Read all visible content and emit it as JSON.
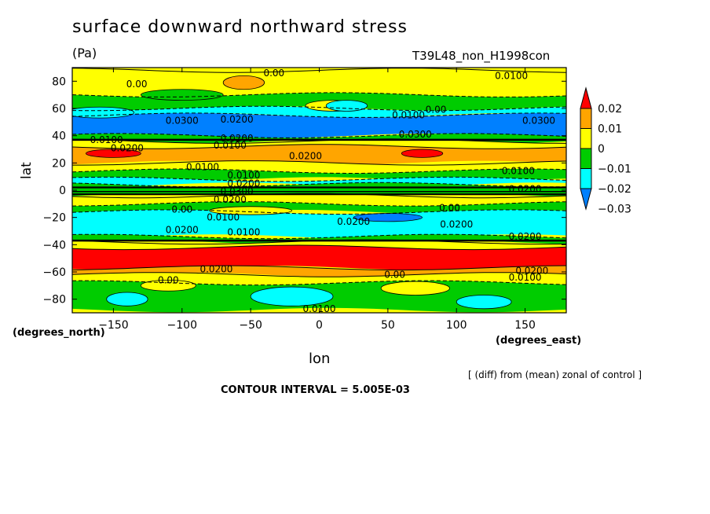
{
  "header": {
    "title": "surface downward northward stress",
    "units": "(Pa)",
    "run": "T39L48_non_H1998con"
  },
  "axes": {
    "ylabel": "lat",
    "xlabel": "lon",
    "y_unit_label": "(degrees_north)",
    "x_unit_label": "(degrees_east)"
  },
  "footer": {
    "diff_note": "[ (diff) from (mean) zonal of control ]",
    "contour_interval": "CONTOUR INTERVAL = 5.005E-03"
  },
  "colors": {
    "red": "#ff0000",
    "orange": "#ffa500",
    "yellow": "#ffff00",
    "green": "#00cc00",
    "cyan": "#00ffff",
    "blue": "#0080ff"
  },
  "chart_data": {
    "type": "heatmap",
    "title": "surface downward northward stress",
    "xlabel": "lon",
    "ylabel": "lat",
    "xlim": [
      -180,
      180
    ],
    "ylim": [
      -90,
      90
    ],
    "xticks": [
      -150,
      -100,
      -50,
      0,
      50,
      100,
      150
    ],
    "yticks": [
      -80,
      -60,
      -40,
      -20,
      0,
      20,
      40,
      60,
      80
    ],
    "colorbar": {
      "levels": [
        "0.02",
        "0.01",
        "0",
        "-0.01",
        "-0.02",
        "-0.03"
      ],
      "colors": [
        "#ff0000",
        "#ffa500",
        "#ffff00",
        "#00cc00",
        "#00ffff",
        "#0080ff"
      ]
    },
    "bands": [
      {
        "lat_from": 70,
        "lat_to": 88,
        "value": 0.005
      },
      {
        "lat_from": 60,
        "lat_to": 70,
        "value": -0.005
      },
      {
        "lat_from": 55,
        "lat_to": 60,
        "value": -0.015
      },
      {
        "lat_from": 40,
        "lat_to": 55,
        "value": -0.025
      },
      {
        "lat_from": 36,
        "lat_to": 40,
        "value": -0.005
      },
      {
        "lat_from": 32,
        "lat_to": 36,
        "value": 0.005
      },
      {
        "lat_from": 20,
        "lat_to": 32,
        "value": 0.015
      },
      {
        "lat_from": 14,
        "lat_to": 20,
        "value": 0.005
      },
      {
        "lat_from": 8,
        "lat_to": 14,
        "value": -0.005
      },
      {
        "lat_from": 4,
        "lat_to": 8,
        "value": -0.015
      },
      {
        "lat_from": -4,
        "lat_to": 4,
        "value": -0.005
      },
      {
        "lat_from": -10,
        "lat_to": -4,
        "value": 0.005
      },
      {
        "lat_from": -16,
        "lat_to": -10,
        "value": -0.005
      },
      {
        "lat_from": -34,
        "lat_to": -16,
        "value": -0.015
      },
      {
        "lat_from": -38,
        "lat_to": -34,
        "value": -0.005
      },
      {
        "lat_from": -42,
        "lat_to": -38,
        "value": 0.005
      },
      {
        "lat_from": -57,
        "lat_to": -42,
        "value": 0.025
      },
      {
        "lat_from": -62,
        "lat_to": -57,
        "value": 0.015
      },
      {
        "lat_from": -68,
        "lat_to": -62,
        "value": 0.005
      },
      {
        "lat_from": -88,
        "lat_to": -68,
        "value": -0.005
      }
    ],
    "patches": [
      {
        "lon": -100,
        "lat": 70,
        "w": 60,
        "h": 8,
        "value": -0.005
      },
      {
        "lon": 10,
        "lat": 62,
        "w": 40,
        "h": 8,
        "value": 0.005
      },
      {
        "lon": -55,
        "lat": 79,
        "w": 30,
        "h": 10,
        "value": 0.015
      },
      {
        "lon": -160,
        "lat": 57,
        "w": 50,
        "h": 8,
        "value": -0.015
      },
      {
        "lon": 20,
        "lat": 62,
        "w": 30,
        "h": 8,
        "value": -0.015
      },
      {
        "lon": -150,
        "lat": 27,
        "w": 40,
        "h": 6,
        "value": 0.025
      },
      {
        "lon": 75,
        "lat": 27,
        "w": 30,
        "h": 6,
        "value": 0.025
      },
      {
        "lon": -50,
        "lat": -15,
        "w": 60,
        "h": 6,
        "value": 0.005
      },
      {
        "lon": 50,
        "lat": -20,
        "w": 50,
        "h": 6,
        "value": -0.025
      },
      {
        "lon": -140,
        "lat": -80,
        "w": 30,
        "h": 10,
        "value": -0.015
      },
      {
        "lon": -20,
        "lat": -78,
        "w": 60,
        "h": 14,
        "value": -0.015
      },
      {
        "lon": 120,
        "lat": -82,
        "w": 40,
        "h": 10,
        "value": -0.015
      },
      {
        "lon": 70,
        "lat": -72,
        "w": 50,
        "h": 10,
        "value": 0.005
      },
      {
        "lon": -110,
        "lat": -70,
        "w": 40,
        "h": 8,
        "value": 0.005
      }
    ],
    "contour_labels": [
      {
        "text": "0.00",
        "lon": -133,
        "lat": 78
      },
      {
        "text": "0.00",
        "lon": -33,
        "lat": 86
      },
      {
        "text": "0.0100",
        "lon": 140,
        "lat": 84
      },
      {
        "text": "0.0100",
        "lon": 65,
        "lat": 55
      },
      {
        "text": "0.00",
        "lon": 85,
        "lat": 59
      },
      {
        "text": "0.0300",
        "lon": -100,
        "lat": 51
      },
      {
        "text": "0.0200",
        "lon": -60,
        "lat": 52
      },
      {
        "text": "0.0300",
        "lon": 160,
        "lat": 51
      },
      {
        "text": "0.0300",
        "lon": 70,
        "lat": 41
      },
      {
        "text": "0.0100",
        "lon": -155,
        "lat": 37
      },
      {
        "text": "0.0200",
        "lon": -140,
        "lat": 31
      },
      {
        "text": "0.0200",
        "lon": -60,
        "lat": 38
      },
      {
        "text": "0.0100",
        "lon": -65,
        "lat": 33
      },
      {
        "text": "0.0200",
        "lon": -10,
        "lat": 25
      },
      {
        "text": "0.0100",
        "lon": -85,
        "lat": 17
      },
      {
        "text": "0.0100",
        "lon": 145,
        "lat": 14
      },
      {
        "text": "0.0100",
        "lon": -55,
        "lat": 11
      },
      {
        "text": "0.0200",
        "lon": -55,
        "lat": 5
      },
      {
        "text": "0.0300",
        "lon": -60,
        "lat": -1
      },
      {
        "text": "0.0200",
        "lon": -65,
        "lat": -7
      },
      {
        "text": "0.0200",
        "lon": 150,
        "lat": 1
      },
      {
        "text": "0.00",
        "lon": -100,
        "lat": -14
      },
      {
        "text": "0.00",
        "lon": 95,
        "lat": -13
      },
      {
        "text": "0.0100",
        "lon": -70,
        "lat": -20
      },
      {
        "text": "0.0200",
        "lon": 25,
        "lat": -23
      },
      {
        "text": "0.0200",
        "lon": 100,
        "lat": -25
      },
      {
        "text": "0.0200",
        "lon": -100,
        "lat": -29
      },
      {
        "text": "0.0100",
        "lon": -55,
        "lat": -31
      },
      {
        "text": "0.0200",
        "lon": 150,
        "lat": -34
      },
      {
        "text": "0.0200",
        "lon": -75,
        "lat": -58
      },
      {
        "text": "0.0100",
        "lon": 150,
        "lat": -64
      },
      {
        "text": "0.0200",
        "lon": 155,
        "lat": -59
      },
      {
        "text": "0.00",
        "lon": -110,
        "lat": -66
      },
      {
        "text": "0.00",
        "lon": 55,
        "lat": -62
      },
      {
        "text": "0.0100",
        "lon": 0,
        "lat": -87
      }
    ]
  }
}
